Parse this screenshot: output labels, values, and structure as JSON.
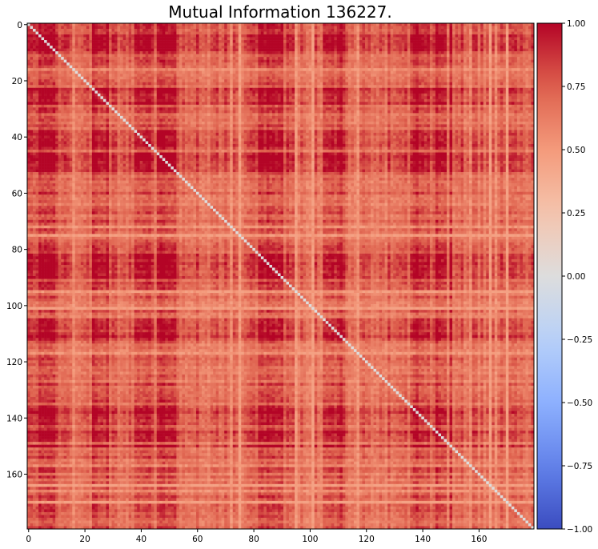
{
  "chart_data": {
    "type": "heatmap",
    "title": "Mutual Information 136227.",
    "xlabel": "",
    "ylabel": "",
    "size": 180,
    "xlim": [
      0,
      179
    ],
    "ylim": [
      179,
      0
    ],
    "x_ticks": [
      0,
      20,
      40,
      60,
      80,
      100,
      120,
      140,
      160
    ],
    "y_ticks": [
      0,
      20,
      40,
      60,
      80,
      100,
      120,
      140,
      160
    ],
    "colorbar": {
      "min": -1.0,
      "max": 1.0,
      "ticks": [
        "1.00",
        "0.75",
        "0.50",
        "0.25",
        "0.00",
        "−0.25",
        "−0.50",
        "−0.75",
        "−1.00"
      ],
      "tick_values": [
        1.0,
        0.75,
        0.5,
        0.25,
        0.0,
        -0.25,
        -0.5,
        -0.75,
        -1.0
      ]
    },
    "colormap": "coolwarm",
    "diagonal_value": 0.0,
    "value_range_observed": [
      0.45,
      1.0
    ],
    "high_blocks": [
      [
        0,
        10
      ],
      [
        22,
        28
      ],
      [
        38,
        52
      ],
      [
        82,
        92
      ],
      [
        104,
        112
      ],
      [
        136,
        150
      ]
    ],
    "grid": false
  }
}
